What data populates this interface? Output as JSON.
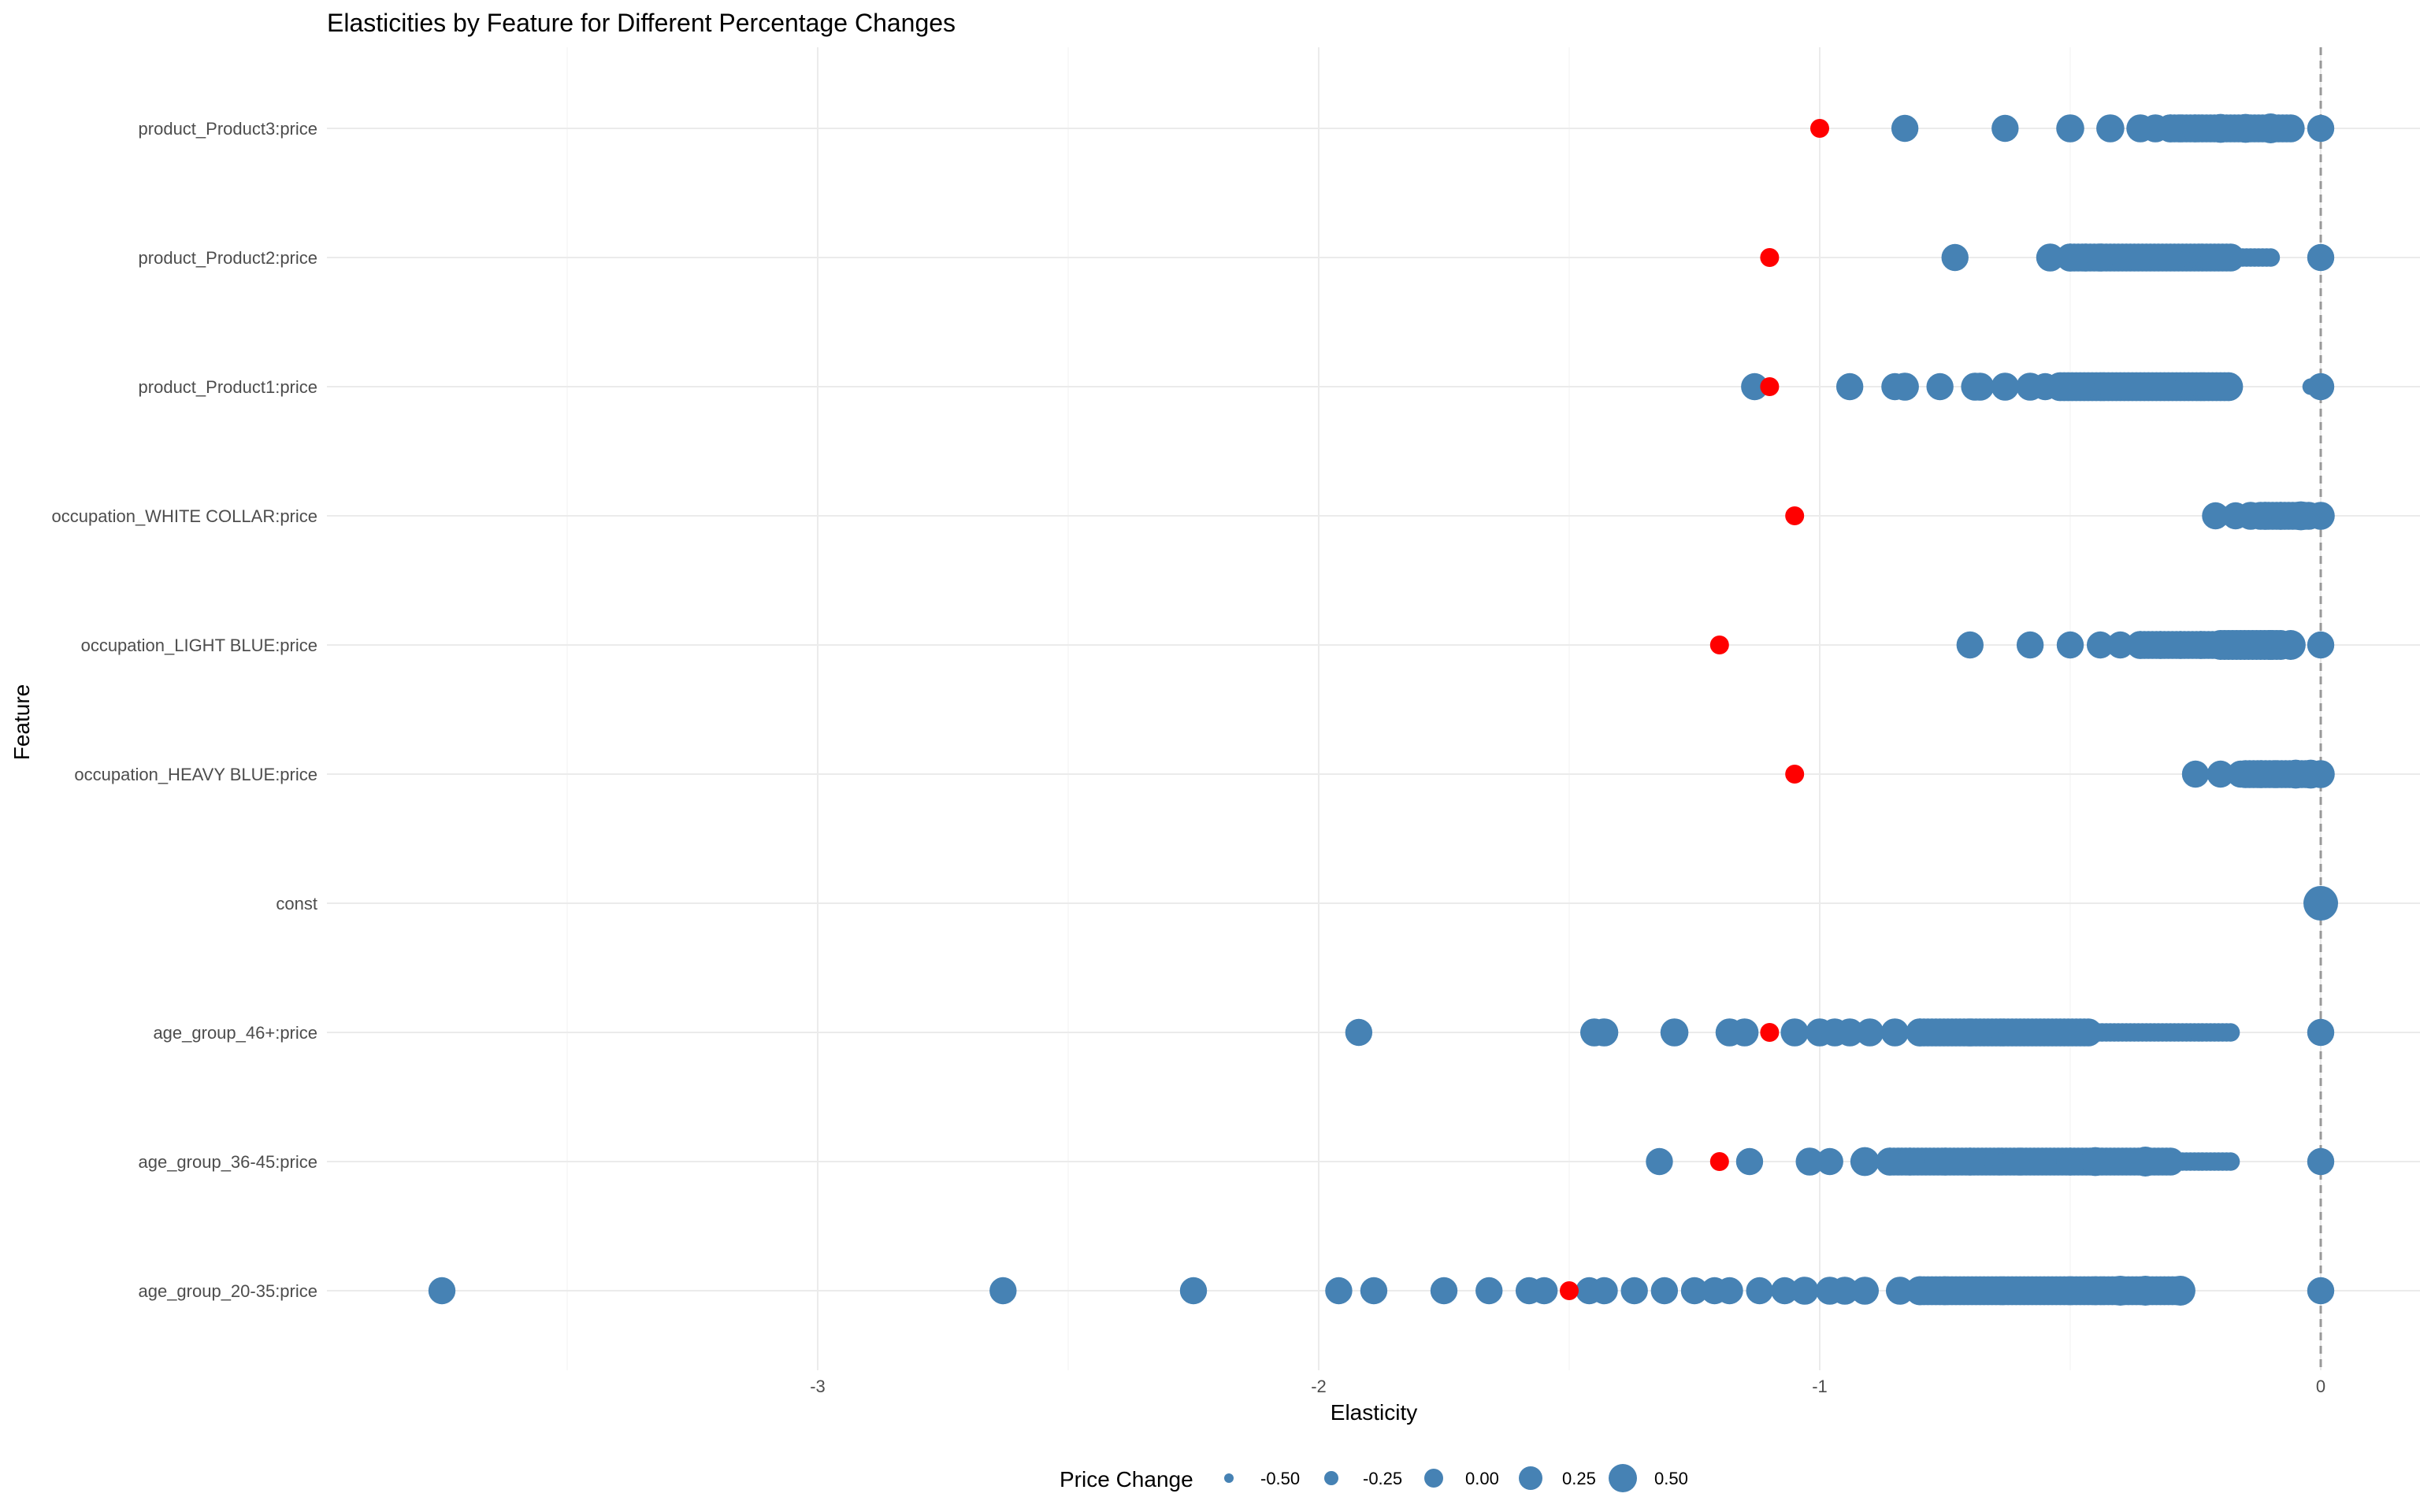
{
  "chart_data": {
    "type": "scatter",
    "title": "Elasticities by Feature for Different Percentage Changes",
    "xlabel": "Elasticity",
    "ylabel": "Feature",
    "xlim": [
      -3.75,
      0.2
    ],
    "x_ticks": [
      -3,
      -2,
      -1,
      0
    ],
    "x_tick_labels": [
      "-3",
      "-2",
      "-1",
      "0"
    ],
    "reference_line_x": 0,
    "grid": true,
    "legend_position": "bottom",
    "colors": {
      "points": "#4682b4",
      "highlight": "#ff0000",
      "reference_line": "#999999"
    },
    "categories": [
      "product_Product3:price",
      "product_Product2:price",
      "product_Product1:price",
      "occupation_WHITE COLLAR:price",
      "occupation_LIGHT BLUE:price",
      "occupation_HEAVY BLUE:price",
      "const",
      "age_group_46+:price",
      "age_group_36-45:price",
      "age_group_20-35:price"
    ],
    "size_legend": {
      "title": "Price Change",
      "values": [
        -0.5,
        -0.25,
        0.0,
        0.25,
        0.5
      ],
      "labels": [
        "-0.50",
        "-0.25",
        "0.00",
        "0.25",
        "0.50"
      ]
    },
    "series": [
      {
        "category": "product_Product3:price",
        "highlight_x": -1.0,
        "points": [
          [
            -0.83,
            0.1
          ],
          [
            -0.63,
            0.1
          ],
          [
            -0.5,
            0.15
          ],
          [
            -0.42,
            0.15
          ],
          [
            -0.36,
            0.15
          ],
          [
            -0.33,
            0.15
          ],
          [
            -0.3,
            0.15
          ],
          [
            -0.28,
            0.15
          ],
          [
            -0.25,
            0.15
          ],
          [
            -0.2,
            0.2
          ],
          [
            -0.15,
            0.2
          ],
          [
            -0.1,
            0.25
          ],
          [
            0.0,
            0.1
          ]
        ],
        "bands": [
          [
            -0.3,
            -0.06,
            0.15
          ]
        ]
      },
      {
        "category": "product_Product2:price",
        "highlight_x": -1.1,
        "points": [
          [
            -0.73,
            0.1
          ],
          [
            -0.54,
            0.15
          ],
          [
            -0.5,
            0.15
          ],
          [
            -0.47,
            0.15
          ],
          [
            -0.44,
            0.15
          ],
          [
            0.0,
            0.1
          ]
        ],
        "bands": [
          [
            -0.5,
            -0.18,
            0.15
          ],
          [
            -0.18,
            -0.1,
            -0.35
          ]
        ]
      },
      {
        "category": "product_Product1:price",
        "highlight_x": -1.1,
        "points": [
          [
            -1.13,
            0.1
          ],
          [
            -0.94,
            0.1
          ],
          [
            -0.85,
            0.1
          ],
          [
            -0.83,
            0.15
          ],
          [
            -0.76,
            0.1
          ],
          [
            -0.69,
            0.15
          ],
          [
            -0.68,
            0.15
          ],
          [
            -0.63,
            0.15
          ],
          [
            -0.58,
            0.15
          ],
          [
            -0.55,
            0.1
          ],
          [
            -0.52,
            0.1
          ],
          [
            -0.48,
            0.15
          ],
          [
            -0.02,
            -0.45
          ],
          [
            0.0,
            0.1
          ]
        ],
        "bands": [
          [
            -0.52,
            -0.18,
            0.2
          ]
        ]
      },
      {
        "category": "occupation_WHITE COLLAR:price",
        "highlight_x": -1.05,
        "points": [
          [
            -0.21,
            0.1
          ],
          [
            -0.17,
            0.1
          ],
          [
            -0.14,
            0.15
          ],
          [
            -0.11,
            0.15
          ],
          [
            -0.08,
            0.15
          ],
          [
            -0.04,
            0.2
          ],
          [
            0.0,
            0.15
          ]
        ],
        "bands": [
          [
            -0.12,
            -0.02,
            0.15
          ]
        ]
      },
      {
        "category": "occupation_LIGHT BLUE:price",
        "highlight_x": -1.2,
        "points": [
          [
            -0.7,
            0.1
          ],
          [
            -0.58,
            0.1
          ],
          [
            -0.5,
            0.1
          ],
          [
            -0.44,
            0.1
          ],
          [
            -0.4,
            0.1
          ],
          [
            -0.36,
            0.15
          ],
          [
            -0.32,
            0.15
          ],
          [
            -0.28,
            0.15
          ],
          [
            -0.24,
            0.15
          ],
          [
            -0.2,
            0.2
          ],
          [
            -0.15,
            0.2
          ],
          [
            -0.1,
            0.25
          ],
          [
            -0.06,
            0.25
          ],
          [
            0.0,
            0.1
          ]
        ],
        "bands": [
          [
            -0.36,
            -0.12,
            0.15
          ],
          [
            -0.2,
            -0.08,
            0.25
          ]
        ]
      },
      {
        "category": "occupation_HEAVY BLUE:price",
        "highlight_x": -1.05,
        "points": [
          [
            -0.25,
            0.1
          ],
          [
            -0.2,
            0.1
          ],
          [
            -0.16,
            0.1
          ],
          [
            -0.12,
            0.15
          ],
          [
            -0.09,
            0.15
          ],
          [
            -0.05,
            0.2
          ],
          [
            -0.02,
            0.2
          ],
          [
            0.0,
            0.15
          ]
        ],
        "bands": [
          [
            -0.15,
            -0.03,
            0.15
          ]
        ]
      },
      {
        "category": "const",
        "highlight_x": null,
        "points": [
          [
            0.0,
            0.5
          ]
        ],
        "bands": []
      },
      {
        "category": "age_group_46+:price",
        "highlight_x": -1.1,
        "points": [
          [
            -1.92,
            0.1
          ],
          [
            -1.45,
            0.15
          ],
          [
            -1.43,
            0.15
          ],
          [
            -1.29,
            0.15
          ],
          [
            -1.18,
            0.15
          ],
          [
            -1.15,
            0.15
          ],
          [
            -1.05,
            0.15
          ],
          [
            -1.0,
            0.15
          ],
          [
            -0.97,
            0.15
          ],
          [
            -0.94,
            0.15
          ],
          [
            -0.9,
            0.15
          ],
          [
            -0.85,
            0.15
          ],
          [
            -0.8,
            0.15
          ],
          [
            -0.7,
            0.15
          ],
          [
            0.0,
            0.1
          ]
        ],
        "bands": [
          [
            -0.8,
            -0.46,
            0.15
          ],
          [
            -0.46,
            -0.18,
            -0.35
          ]
        ]
      },
      {
        "category": "age_group_36-45:price",
        "highlight_x": -1.2,
        "points": [
          [
            -1.32,
            0.1
          ],
          [
            -1.14,
            0.1
          ],
          [
            -1.02,
            0.15
          ],
          [
            -0.98,
            0.1
          ],
          [
            -0.91,
            0.2
          ],
          [
            -0.86,
            0.15
          ],
          [
            -0.82,
            0.15
          ],
          [
            -0.75,
            0.15
          ],
          [
            -0.7,
            0.15
          ],
          [
            -0.6,
            0.15
          ],
          [
            -0.5,
            0.15
          ],
          [
            -0.45,
            0.2
          ],
          [
            -0.35,
            0.25
          ],
          [
            0.0,
            0.1
          ]
        ],
        "bands": [
          [
            -0.86,
            -0.3,
            0.15
          ],
          [
            -0.3,
            -0.18,
            -0.35
          ]
        ]
      },
      {
        "category": "age_group_20-35:price",
        "highlight_x": -1.5,
        "points": [
          [
            -3.75,
            0.1
          ],
          [
            -2.63,
            0.1
          ],
          [
            -2.25,
            0.1
          ],
          [
            -1.96,
            0.1
          ],
          [
            -1.89,
            0.1
          ],
          [
            -1.75,
            0.1
          ],
          [
            -1.66,
            0.1
          ],
          [
            -1.58,
            0.1
          ],
          [
            -1.55,
            0.1
          ],
          [
            -1.46,
            0.1
          ],
          [
            -1.43,
            0.1
          ],
          [
            -1.37,
            0.1
          ],
          [
            -1.31,
            0.1
          ],
          [
            -1.25,
            0.1
          ],
          [
            -1.21,
            0.1
          ],
          [
            -1.18,
            0.1
          ],
          [
            -1.12,
            0.1
          ],
          [
            -1.07,
            0.1
          ],
          [
            -1.03,
            0.15
          ],
          [
            -0.98,
            0.15
          ],
          [
            -0.95,
            0.15
          ],
          [
            -0.91,
            0.15
          ],
          [
            -0.84,
            0.15
          ],
          [
            -0.8,
            0.2
          ],
          [
            -0.75,
            0.2
          ],
          [
            -0.7,
            0.15
          ],
          [
            -0.65,
            0.15
          ],
          [
            -0.6,
            0.15
          ],
          [
            -0.55,
            0.15
          ],
          [
            -0.5,
            0.2
          ],
          [
            -0.45,
            0.2
          ],
          [
            -0.4,
            0.25
          ],
          [
            -0.35,
            0.25
          ],
          [
            -0.28,
            0.25
          ],
          [
            0.0,
            0.1
          ]
        ],
        "bands": [
          [
            -0.8,
            -0.28,
            0.2
          ]
        ]
      }
    ]
  }
}
